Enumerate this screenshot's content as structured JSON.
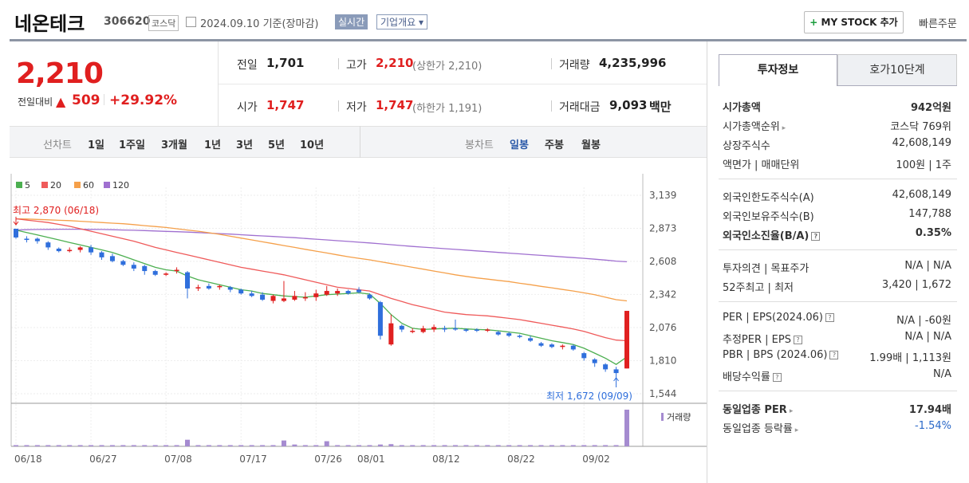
{
  "header": {
    "name": "네온테크",
    "code": "306620",
    "market": "코스닥",
    "date": "2024.09.10  기준(장마감)",
    "realtime": "실시간",
    "company_info": "기업개요 ▾",
    "mystock": "MY STOCK 추가",
    "quick_order": "빠른주문"
  },
  "price": {
    "current": "2,210",
    "change_label": "전일대비",
    "change_value": "509",
    "change_pct": "+29.92%"
  },
  "stats": {
    "prev_close_label": "전일",
    "prev_close": "1,701",
    "high_label": "고가",
    "high": "2,210",
    "upper_limit": "(상한가 2,210)",
    "volume_label": "거래량",
    "volume": "4,235,996",
    "open_label": "시가",
    "open": "1,747",
    "low_label": "저가",
    "low": "1,747",
    "lower_limit": "(하한가 1,191)",
    "amount_label": "거래대금",
    "amount": "9,093",
    "amount_unit": "백만"
  },
  "period_bar": {
    "line_label": "선차트",
    "line_options": [
      "1일",
      "1주일",
      "3개월",
      "1년",
      "3년",
      "5년",
      "10년"
    ],
    "candle_label": "봉차트",
    "candle_options": [
      "일봉",
      "주봉",
      "월봉"
    ],
    "candle_selected": "일봉"
  },
  "right_panel": {
    "tabs": [
      "투자정보",
      "호가10단계"
    ],
    "rows": [
      {
        "label": "시가총액",
        "value": "942억원"
      },
      {
        "label": "시가총액순위",
        "value": "코스닥 769위"
      },
      {
        "label": "상장주식수",
        "value": "42,608,149"
      },
      {
        "label": "액면가 | 매매단위",
        "value": "100원 | 1주"
      },
      {
        "label": "외국인한도주식수(A)",
        "value": "42,608,149"
      },
      {
        "label": "외국인보유주식수(B)",
        "value": "147,788"
      },
      {
        "label": "외국인소진율(B/A)",
        "value": "0.35%"
      },
      {
        "label": "투자의견 | 목표주가",
        "value": "N/A | N/A"
      },
      {
        "label": "52주최고 | 최저",
        "value": "3,420 | 1,672"
      },
      {
        "label": "PER | EPS(2024.06)",
        "value": "N/A | -60원"
      },
      {
        "label": "추정PER | EPS",
        "value": "N/A | N/A"
      },
      {
        "label": "PBR | BPS (2024.06)",
        "value": "1.99배 | 1,113원"
      },
      {
        "label": "배당수익률",
        "value": "N/A"
      },
      {
        "label": "동일업종 PER",
        "value": "17.94배"
      },
      {
        "label": "동일업종 등락률",
        "value": "-1.54%"
      }
    ]
  },
  "chart_data": {
    "type": "candlestick",
    "legend": [
      "5",
      "20",
      "60",
      "120"
    ],
    "colors": {
      "ma5": "#4caf50",
      "ma20": "#ef5a5a",
      "ma60": "#f5a04a",
      "ma120": "#a070d0",
      "up": "#e02020",
      "down": "#2f6fdc",
      "volume": "#a58bd0"
    },
    "y_ticks": [
      3139,
      2873,
      2608,
      2342,
      2076,
      1810,
      1544
    ],
    "ylim": [
      1544,
      3139
    ],
    "x_tick_labels": [
      "06/18",
      "06/27",
      "07/08",
      "07/17",
      "07/26",
      "08/01",
      "08/12",
      "08/22",
      "09/02"
    ],
    "x_tick_index": [
      0,
      7,
      14,
      21,
      28,
      32,
      39,
      46,
      53
    ],
    "annotation_high": "최고 2,870 (06/18)",
    "annotation_low": "최저 1,672 (09/09)",
    "volume_label": "거래량",
    "candles": [
      {
        "o": 2870,
        "h": 2870,
        "l": 2790,
        "c": 2800
      },
      {
        "o": 2790,
        "h": 2810,
        "l": 2760,
        "c": 2780
      },
      {
        "o": 2790,
        "h": 2800,
        "l": 2750,
        "c": 2770
      },
      {
        "o": 2760,
        "h": 2770,
        "l": 2700,
        "c": 2720
      },
      {
        "o": 2710,
        "h": 2720,
        "l": 2680,
        "c": 2690
      },
      {
        "o": 2690,
        "h": 2720,
        "l": 2680,
        "c": 2700
      },
      {
        "o": 2700,
        "h": 2730,
        "l": 2680,
        "c": 2720
      },
      {
        "o": 2720,
        "h": 2740,
        "l": 2660,
        "c": 2680
      },
      {
        "o": 2680,
        "h": 2690,
        "l": 2620,
        "c": 2640
      },
      {
        "o": 2650,
        "h": 2670,
        "l": 2600,
        "c": 2610
      },
      {
        "o": 2610,
        "h": 2620,
        "l": 2570,
        "c": 2580
      },
      {
        "o": 2580,
        "h": 2600,
        "l": 2530,
        "c": 2550
      },
      {
        "o": 2570,
        "h": 2580,
        "l": 2500,
        "c": 2530
      },
      {
        "o": 2530,
        "h": 2540,
        "l": 2490,
        "c": 2500
      },
      {
        "o": 2500,
        "h": 2520,
        "l": 2490,
        "c": 2510
      },
      {
        "o": 2530,
        "h": 2560,
        "l": 2510,
        "c": 2540
      },
      {
        "o": 2520,
        "h": 2530,
        "l": 2310,
        "c": 2390
      },
      {
        "o": 2390,
        "h": 2420,
        "l": 2370,
        "c": 2400
      },
      {
        "o": 2410,
        "h": 2430,
        "l": 2380,
        "c": 2390
      },
      {
        "o": 2400,
        "h": 2420,
        "l": 2380,
        "c": 2410
      },
      {
        "o": 2400,
        "h": 2410,
        "l": 2360,
        "c": 2380
      },
      {
        "o": 2380,
        "h": 2390,
        "l": 2340,
        "c": 2350
      },
      {
        "o": 2350,
        "h": 2370,
        "l": 2320,
        "c": 2330
      },
      {
        "o": 2340,
        "h": 2360,
        "l": 2290,
        "c": 2300
      },
      {
        "o": 2290,
        "h": 2340,
        "l": 2270,
        "c": 2330
      },
      {
        "o": 2290,
        "h": 2450,
        "l": 2280,
        "c": 2310
      },
      {
        "o": 2300,
        "h": 2370,
        "l": 2290,
        "c": 2330
      },
      {
        "o": 2310,
        "h": 2360,
        "l": 2290,
        "c": 2320
      },
      {
        "o": 2320,
        "h": 2380,
        "l": 2290,
        "c": 2350
      },
      {
        "o": 2340,
        "h": 2410,
        "l": 2330,
        "c": 2370
      },
      {
        "o": 2350,
        "h": 2390,
        "l": 2330,
        "c": 2370
      },
      {
        "o": 2370,
        "h": 2380,
        "l": 2340,
        "c": 2350
      },
      {
        "o": 2380,
        "h": 2400,
        "l": 2350,
        "c": 2360
      },
      {
        "o": 2340,
        "h": 2350,
        "l": 2300,
        "c": 2310
      },
      {
        "o": 2280,
        "h": 2290,
        "l": 1980,
        "c": 2010
      },
      {
        "o": 1940,
        "h": 2180,
        "l": 1930,
        "c": 2110
      },
      {
        "o": 2090,
        "h": 2100,
        "l": 2040,
        "c": 2060
      },
      {
        "o": 2050,
        "h": 2070,
        "l": 2030,
        "c": 2050
      },
      {
        "o": 2040,
        "h": 2090,
        "l": 2030,
        "c": 2070
      },
      {
        "o": 2060,
        "h": 2100,
        "l": 2040,
        "c": 2080
      },
      {
        "o": 2070,
        "h": 2090,
        "l": 2040,
        "c": 2060
      },
      {
        "o": 2070,
        "h": 2140,
        "l": 2050,
        "c": 2060
      },
      {
        "o": 2060,
        "h": 2070,
        "l": 2040,
        "c": 2050
      },
      {
        "o": 2060,
        "h": 2070,
        "l": 2040,
        "c": 2050
      },
      {
        "o": 2050,
        "h": 2070,
        "l": 2040,
        "c": 2060
      },
      {
        "o": 2040,
        "h": 2050,
        "l": 2010,
        "c": 2020
      },
      {
        "o": 2030,
        "h": 2040,
        "l": 2000,
        "c": 2010
      },
      {
        "o": 2010,
        "h": 2020,
        "l": 1990,
        "c": 2000
      },
      {
        "o": 1990,
        "h": 2010,
        "l": 1960,
        "c": 1970
      },
      {
        "o": 1950,
        "h": 1960,
        "l": 1920,
        "c": 1930
      },
      {
        "o": 1940,
        "h": 1950,
        "l": 1910,
        "c": 1920
      },
      {
        "o": 1920,
        "h": 1940,
        "l": 1900,
        "c": 1930
      },
      {
        "o": 1930,
        "h": 1940,
        "l": 1890,
        "c": 1900
      },
      {
        "o": 1870,
        "h": 1880,
        "l": 1810,
        "c": 1830
      },
      {
        "o": 1820,
        "h": 1830,
        "l": 1760,
        "c": 1790
      },
      {
        "o": 1780,
        "h": 1790,
        "l": 1720,
        "c": 1740
      },
      {
        "o": 1740,
        "h": 1760,
        "l": 1672,
        "c": 1710
      },
      {
        "o": 1747,
        "h": 2210,
        "l": 1747,
        "c": 2210
      }
    ],
    "ma5": [
      2860,
      2840,
      2820,
      2800,
      2780,
      2760,
      2740,
      2720,
      2700,
      2680,
      2650,
      2620,
      2590,
      2560,
      2540,
      2530,
      2490,
      2460,
      2440,
      2420,
      2400,
      2380,
      2370,
      2350,
      2340,
      2330,
      2325,
      2320,
      2330,
      2340,
      2345,
      2350,
      2355,
      2345,
      2270,
      2180,
      2110,
      2070,
      2060,
      2065,
      2068,
      2070,
      2065,
      2060,
      2058,
      2050,
      2040,
      2030,
      2010,
      1990,
      1970,
      1955,
      1940,
      1910,
      1870,
      1830,
      1780,
      1840
    ],
    "ma20": [
      2950,
      2940,
      2930,
      2920,
      2905,
      2890,
      2870,
      2850,
      2830,
      2810,
      2790,
      2770,
      2745,
      2720,
      2700,
      2680,
      2660,
      2640,
      2620,
      2600,
      2580,
      2560,
      2545,
      2530,
      2515,
      2500,
      2480,
      2460,
      2440,
      2420,
      2400,
      2390,
      2380,
      2370,
      2340,
      2310,
      2285,
      2260,
      2240,
      2220,
      2200,
      2190,
      2180,
      2175,
      2170,
      2160,
      2150,
      2140,
      2125,
      2110,
      2095,
      2080,
      2065,
      2045,
      2020,
      1995,
      1975,
      1970
    ],
    "ma60": [
      2950,
      2948,
      2945,
      2942,
      2938,
      2935,
      2930,
      2925,
      2920,
      2915,
      2910,
      2903,
      2895,
      2888,
      2880,
      2870,
      2860,
      2850,
      2838,
      2825,
      2810,
      2795,
      2780,
      2765,
      2750,
      2735,
      2720,
      2705,
      2690,
      2675,
      2660,
      2645,
      2632,
      2620,
      2605,
      2590,
      2575,
      2560,
      2545,
      2530,
      2515,
      2500,
      2487,
      2475,
      2465,
      2455,
      2445,
      2432,
      2420,
      2407,
      2395,
      2382,
      2370,
      2355,
      2340,
      2320,
      2300,
      2290
    ],
    "ma120": [
      2860,
      2862,
      2864,
      2865,
      2866,
      2866,
      2866,
      2865,
      2864,
      2862,
      2860,
      2858,
      2855,
      2852,
      2849,
      2846,
      2843,
      2839,
      2835,
      2831,
      2827,
      2822,
      2817,
      2812,
      2808,
      2803,
      2798,
      2792,
      2786,
      2780,
      2774,
      2768,
      2762,
      2756,
      2749,
      2742,
      2735,
      2728,
      2722,
      2716,
      2710,
      2704,
      2698,
      2692,
      2686,
      2680,
      2674,
      2668,
      2662,
      2656,
      2650,
      2644,
      2638,
      2632,
      2625,
      2618,
      2610,
      2605
    ],
    "volume": [
      0.03,
      0.02,
      0.02,
      0.02,
      0.02,
      0.02,
      0.02,
      0.02,
      0.02,
      0.02,
      0.02,
      0.02,
      0.02,
      0.02,
      0.02,
      0.03,
      0.18,
      0.03,
      0.02,
      0.02,
      0.02,
      0.02,
      0.02,
      0.02,
      0.03,
      0.16,
      0.05,
      0.02,
      0.02,
      0.14,
      0.03,
      0.03,
      0.02,
      0.02,
      0.05,
      0.06,
      0.02,
      0.02,
      0.02,
      0.02,
      0.02,
      0.03,
      0.02,
      0.02,
      0.02,
      0.02,
      0.02,
      0.02,
      0.02,
      0.02,
      0.02,
      0.02,
      0.02,
      0.02,
      0.02,
      0.03,
      0.03,
      1.0
    ]
  }
}
